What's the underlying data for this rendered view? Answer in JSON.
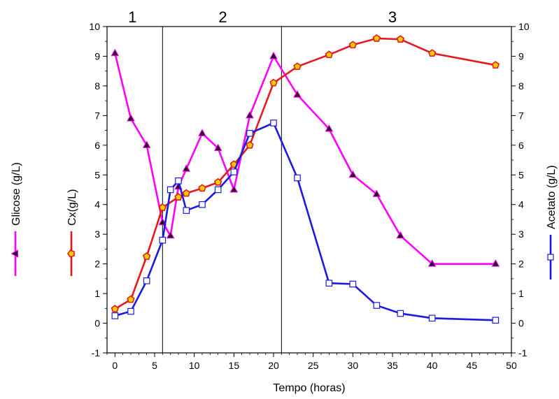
{
  "chart_data": {
    "type": "line",
    "xlabel": "Tempo (horas)",
    "xlim": [
      -1,
      50
    ],
    "x_ticks": [
      0,
      5,
      10,
      15,
      20,
      25,
      30,
      35,
      40,
      45,
      50
    ],
    "y_axes": [
      {
        "id": "glicose",
        "label": "Glicose (g/L)",
        "ylim": [
          -1,
          10
        ],
        "ticks": [
          -1,
          0,
          1,
          2,
          3,
          4,
          5,
          6,
          7,
          8,
          9,
          10
        ]
      },
      {
        "id": "cx",
        "label": "Cx(g/L)",
        "ylim": [
          -1,
          10
        ],
        "ticks": [
          -1,
          0,
          1,
          2,
          3,
          4,
          5,
          6,
          7,
          8,
          9,
          10
        ]
      },
      {
        "id": "acetato",
        "label": "Acetato (g/L)",
        "ylim": [
          -1,
          10
        ],
        "ticks": [
          -1,
          0,
          1,
          2,
          3,
          4,
          5,
          6,
          7,
          8,
          9,
          10
        ]
      }
    ],
    "phase_lines": [
      6,
      21
    ],
    "phase_labels": [
      {
        "text": "1",
        "x": 2.2
      },
      {
        "text": "2",
        "x": 13.6
      },
      {
        "text": "3",
        "x": 35
      }
    ],
    "series": [
      {
        "name": "Glicose (g/L)",
        "color": "#ff00ff",
        "marker": "triangle",
        "marker_fill": "#2a0a20",
        "x": [
          0,
          2,
          4,
          6,
          7,
          8,
          9,
          11,
          13,
          15,
          17,
          20,
          23,
          27,
          30,
          33,
          36,
          40,
          48
        ],
        "y": [
          9.1,
          6.9,
          6.0,
          3.4,
          2.95,
          4.6,
          5.2,
          6.4,
          5.9,
          4.5,
          7.0,
          9.0,
          7.7,
          6.55,
          5.0,
          4.35,
          2.95,
          2.0,
          2.0
        ]
      },
      {
        "name": "Cx(g/L)",
        "color": "#e41a1a",
        "marker": "pentagon",
        "marker_fill": "#ffcc00",
        "x": [
          0,
          2,
          4,
          6,
          8,
          9,
          11,
          13,
          15,
          17,
          20,
          23,
          27,
          30,
          33,
          36,
          40,
          48
        ],
        "y": [
          0.48,
          0.8,
          2.25,
          3.9,
          4.25,
          4.38,
          4.55,
          4.75,
          5.35,
          6.0,
          8.1,
          8.65,
          9.05,
          9.38,
          9.6,
          9.57,
          9.1,
          8.7
        ]
      },
      {
        "name": "Acetato (g/L)",
        "color": "#1a1ae0",
        "marker": "square",
        "marker_fill": "#ffffff",
        "x": [
          0,
          2,
          4,
          6,
          7,
          8,
          9,
          11,
          13,
          15,
          17,
          20,
          23,
          27,
          30,
          33,
          36,
          40,
          48
        ],
        "y": [
          0.25,
          0.4,
          1.43,
          2.8,
          4.5,
          4.8,
          3.8,
          4.0,
          4.5,
          5.1,
          6.4,
          6.75,
          4.9,
          1.35,
          1.32,
          0.6,
          0.33,
          0.17,
          0.1
        ]
      }
    ]
  }
}
